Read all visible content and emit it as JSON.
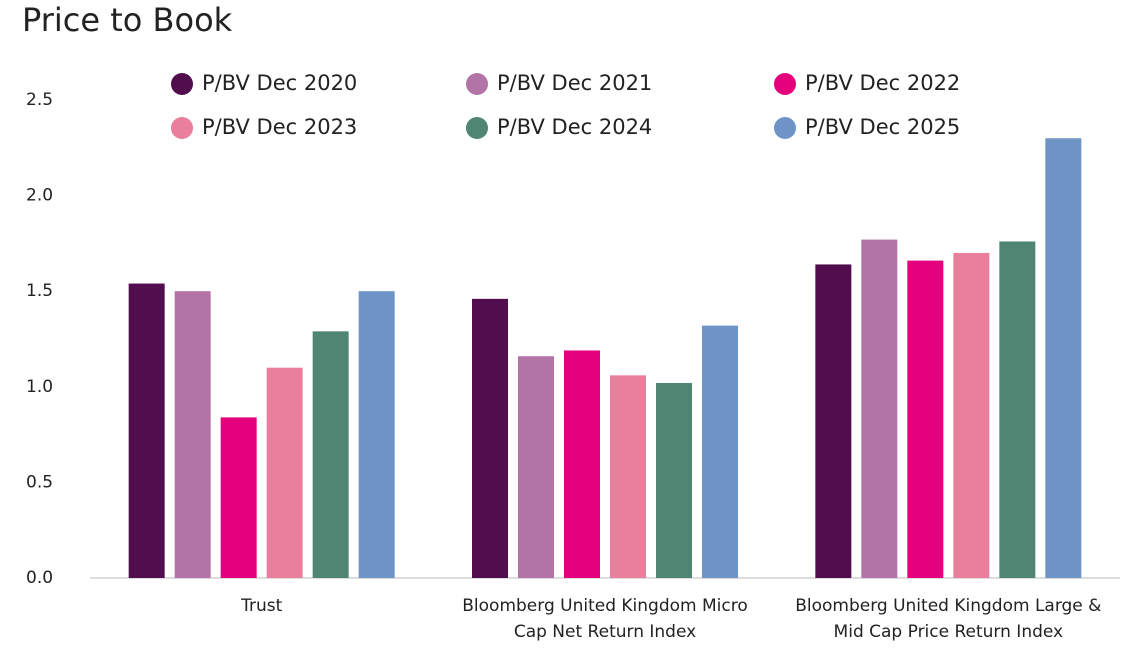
{
  "chart_data": {
    "type": "bar",
    "title": "Price to Book",
    "categories": [
      "Trust",
      "Bloomberg United Kingdom Micro Cap Net Return Index",
      "Bloomberg United Kingdom Large & Mid Cap Price Return Index"
    ],
    "series": [
      {
        "name": "P/BV Dec 2020",
        "color": "#520d4f",
        "values": [
          1.54,
          1.46,
          1.64
        ]
      },
      {
        "name": "P/BV Dec 2021",
        "color": "#b274a6",
        "values": [
          1.5,
          1.16,
          1.77
        ]
      },
      {
        "name": "P/BV Dec 2022",
        "color": "#e5007e",
        "values": [
          0.84,
          1.19,
          1.66
        ]
      },
      {
        "name": "P/BV Dec 2023",
        "color": "#e97f9d",
        "values": [
          1.1,
          1.06,
          1.7
        ]
      },
      {
        "name": "P/BV Dec 2024",
        "color": "#4f8573",
        "values": [
          1.29,
          1.02,
          1.76
        ]
      },
      {
        "name": "P/BV Dec 2025",
        "color": "#6e94c7",
        "values": [
          1.5,
          1.32,
          2.3
        ]
      }
    ],
    "ylim": [
      0,
      2.5
    ],
    "yticks": [
      {
        "value": 0,
        "label": "0.0"
      },
      0.5,
      {
        "value": 1,
        "label": "1.0"
      },
      1.5,
      {
        "value": 2,
        "label": "2.0"
      },
      2.5
    ],
    "grid": false
  }
}
